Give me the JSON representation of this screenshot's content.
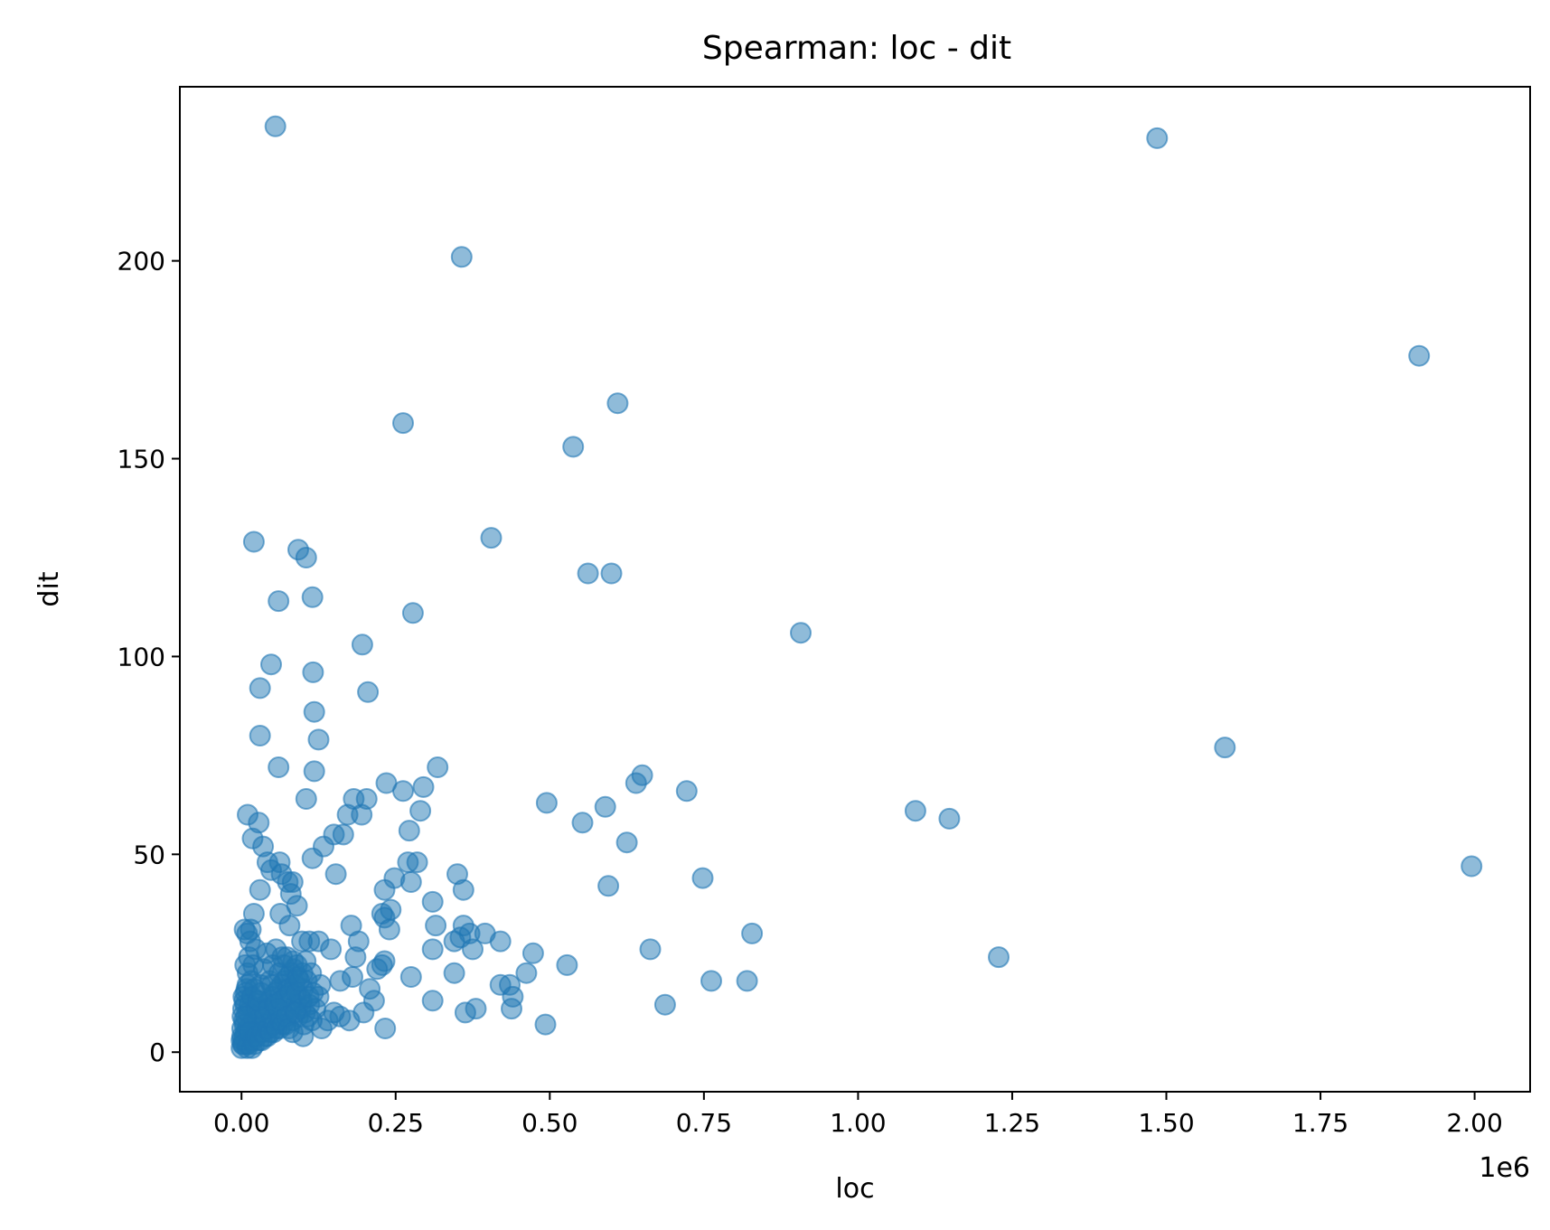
{
  "chart_data": {
    "type": "scatter",
    "title": "Spearman: loc - dit",
    "xlabel": "loc",
    "ylabel": "dit",
    "x_offset_label": "1e6",
    "xlim": [
      -100000,
      2090000
    ],
    "ylim": [
      -10,
      244
    ],
    "x_ticks": [
      0,
      250000,
      500000,
      750000,
      1000000,
      1250000,
      1500000,
      1750000,
      2000000
    ],
    "x_tick_labels": [
      "0.00",
      "0.25",
      "0.50",
      "0.75",
      "1.00",
      "1.25",
      "1.50",
      "1.75",
      "2.00"
    ],
    "y_ticks": [
      0,
      50,
      100,
      150,
      200
    ],
    "y_tick_labels": [
      "0",
      "50",
      "100",
      "150",
      "200"
    ],
    "grid": false,
    "legend": "none",
    "color": "#1f77b4",
    "point_alpha": 0.5,
    "points": [
      [
        55000,
        234
      ],
      [
        1485000,
        231
      ],
      [
        357000,
        201
      ],
      [
        1910000,
        176
      ],
      [
        610000,
        164
      ],
      [
        262000,
        159
      ],
      [
        538000,
        153
      ],
      [
        405000,
        130
      ],
      [
        20000,
        129
      ],
      [
        92000,
        127
      ],
      [
        105000,
        125
      ],
      [
        562000,
        121
      ],
      [
        600000,
        121
      ],
      [
        60000,
        114
      ],
      [
        115000,
        115
      ],
      [
        278000,
        111
      ],
      [
        907000,
        106
      ],
      [
        196000,
        103
      ],
      [
        48000,
        98
      ],
      [
        116000,
        96
      ],
      [
        30000,
        92
      ],
      [
        205000,
        91
      ],
      [
        118000,
        86
      ],
      [
        30000,
        80
      ],
      [
        125000,
        79
      ],
      [
        1595000,
        77
      ],
      [
        60000,
        72
      ],
      [
        318000,
        72
      ],
      [
        118000,
        71
      ],
      [
        650000,
        70
      ],
      [
        640000,
        68
      ],
      [
        235000,
        68
      ],
      [
        295000,
        67
      ],
      [
        262000,
        66
      ],
      [
        722000,
        66
      ],
      [
        105000,
        64
      ],
      [
        182000,
        64
      ],
      [
        203000,
        64
      ],
      [
        495000,
        63
      ],
      [
        590000,
        62
      ],
      [
        290000,
        61
      ],
      [
        1093000,
        61
      ],
      [
        10000,
        60
      ],
      [
        172000,
        60
      ],
      [
        195000,
        60
      ],
      [
        1148000,
        59
      ],
      [
        28000,
        58
      ],
      [
        553000,
        58
      ],
      [
        272000,
        56
      ],
      [
        150000,
        55
      ],
      [
        165000,
        55
      ],
      [
        18000,
        54
      ],
      [
        625000,
        53
      ],
      [
        35000,
        52
      ],
      [
        133000,
        52
      ],
      [
        115000,
        49
      ],
      [
        42000,
        48
      ],
      [
        62000,
        48
      ],
      [
        270000,
        48
      ],
      [
        285000,
        48
      ],
      [
        1995000,
        47
      ],
      [
        48000,
        46
      ],
      [
        65000,
        45
      ],
      [
        153000,
        45
      ],
      [
        350000,
        45
      ],
      [
        248000,
        44
      ],
      [
        748000,
        44
      ],
      [
        75000,
        43
      ],
      [
        83000,
        43
      ],
      [
        275000,
        43
      ],
      [
        595000,
        42
      ],
      [
        30000,
        41
      ],
      [
        232000,
        41
      ],
      [
        360000,
        41
      ],
      [
        80000,
        40
      ],
      [
        310000,
        38
      ],
      [
        90000,
        37
      ],
      [
        242000,
        36
      ],
      [
        20000,
        35
      ],
      [
        63000,
        35
      ],
      [
        228000,
        35
      ],
      [
        232000,
        34
      ],
      [
        78000,
        32
      ],
      [
        178000,
        32
      ],
      [
        315000,
        32
      ],
      [
        360000,
        32
      ],
      [
        5000,
        31
      ],
      [
        15000,
        31
      ],
      [
        240000,
        31
      ],
      [
        370000,
        30
      ],
      [
        395000,
        30
      ],
      [
        828000,
        30
      ],
      [
        355000,
        29
      ],
      [
        190000,
        28
      ],
      [
        345000,
        28
      ],
      [
        420000,
        28
      ],
      [
        98000,
        28
      ],
      [
        110000,
        28
      ],
      [
        125000,
        28
      ],
      [
        310000,
        26
      ],
      [
        375000,
        26
      ],
      [
        663000,
        26
      ],
      [
        145000,
        26
      ],
      [
        473000,
        25
      ],
      [
        1228000,
        24
      ],
      [
        185000,
        24
      ],
      [
        232000,
        23
      ],
      [
        228000,
        22
      ],
      [
        528000,
        22
      ],
      [
        220000,
        21
      ],
      [
        345000,
        20
      ],
      [
        462000,
        20
      ],
      [
        180000,
        19
      ],
      [
        275000,
        19
      ],
      [
        160000,
        18
      ],
      [
        762000,
        18
      ],
      [
        820000,
        18
      ],
      [
        420000,
        17
      ],
      [
        435000,
        17
      ],
      [
        208000,
        16
      ],
      [
        440000,
        14
      ],
      [
        215000,
        13
      ],
      [
        310000,
        13
      ],
      [
        687000,
        12
      ],
      [
        438000,
        11
      ],
      [
        380000,
        11
      ],
      [
        363000,
        10
      ],
      [
        198000,
        10
      ],
      [
        175000,
        8
      ],
      [
        160000,
        9
      ],
      [
        493000,
        7
      ],
      [
        233000,
        6
      ],
      [
        130000,
        6
      ],
      [
        100000,
        4
      ],
      [
        140000,
        8
      ],
      [
        125000,
        14
      ],
      [
        150000,
        10
      ],
      [
        0,
        1
      ],
      [
        2000,
        2
      ],
      [
        3000,
        3
      ],
      [
        5000,
        4
      ],
      [
        7000,
        5
      ],
      [
        8000,
        2
      ],
      [
        10000,
        6
      ],
      [
        12000,
        3
      ],
      [
        15000,
        7
      ],
      [
        18000,
        4
      ],
      [
        20000,
        8
      ],
      [
        22000,
        5
      ],
      [
        25000,
        9
      ],
      [
        28000,
        6
      ],
      [
        30000,
        10
      ],
      [
        33000,
        3
      ],
      [
        35000,
        11
      ],
      [
        38000,
        7
      ],
      [
        40000,
        12
      ],
      [
        42000,
        4
      ],
      [
        45000,
        13
      ],
      [
        48000,
        8
      ],
      [
        50000,
        14
      ],
      [
        52000,
        5
      ],
      [
        55000,
        15
      ],
      [
        58000,
        9
      ],
      [
        60000,
        16
      ],
      [
        62000,
        6
      ],
      [
        65000,
        17
      ],
      [
        68000,
        10
      ],
      [
        70000,
        18
      ],
      [
        72000,
        7
      ],
      [
        75000,
        19
      ],
      [
        78000,
        11
      ],
      [
        80000,
        20
      ],
      [
        82000,
        8
      ],
      [
        85000,
        21
      ],
      [
        88000,
        12
      ],
      [
        90000,
        22
      ],
      [
        92000,
        9
      ],
      [
        95000,
        14
      ],
      [
        98000,
        13
      ],
      [
        100000,
        16
      ],
      [
        103000,
        10
      ],
      [
        106000,
        18
      ],
      [
        110000,
        12
      ],
      [
        113000,
        20
      ],
      [
        116000,
        15
      ],
      [
        4000,
        8
      ],
      [
        6000,
        12
      ],
      [
        8000,
        16
      ],
      [
        10000,
        20
      ],
      [
        12000,
        24
      ],
      [
        14000,
        28
      ],
      [
        9000,
        30
      ],
      [
        6000,
        22
      ],
      [
        3000,
        14
      ],
      [
        16000,
        18
      ],
      [
        19000,
        22
      ],
      [
        23000,
        26
      ],
      [
        26000,
        13
      ],
      [
        31000,
        17
      ],
      [
        36000,
        21
      ],
      [
        41000,
        25
      ],
      [
        46000,
        18
      ],
      [
        51000,
        22
      ],
      [
        56000,
        26
      ],
      [
        61000,
        20
      ],
      [
        66000,
        24
      ],
      [
        71000,
        14
      ],
      [
        76000,
        16
      ],
      [
        81000,
        13
      ],
      [
        86000,
        17
      ],
      [
        91000,
        19
      ],
      [
        96000,
        11
      ],
      [
        101000,
        7
      ],
      [
        108000,
        9
      ],
      [
        120000,
        11
      ],
      [
        1000,
        6
      ],
      [
        1500,
        9
      ],
      [
        2500,
        11
      ],
      [
        4500,
        13
      ],
      [
        6500,
        15
      ],
      [
        9500,
        17
      ],
      [
        11000,
        10
      ],
      [
        13000,
        12
      ],
      [
        17000,
        14
      ],
      [
        21000,
        16
      ],
      [
        24000,
        11
      ],
      [
        27000,
        13
      ],
      [
        32000,
        15
      ],
      [
        37000,
        9
      ],
      [
        44000,
        11
      ],
      [
        49000,
        17
      ],
      [
        54000,
        12
      ],
      [
        59000,
        11
      ],
      [
        64000,
        13
      ],
      [
        69000,
        22
      ],
      [
        74000,
        24
      ],
      [
        79000,
        15
      ],
      [
        84000,
        23
      ],
      [
        89000,
        15
      ],
      [
        94000,
        18
      ],
      [
        99000,
        20
      ],
      [
        104000,
        23
      ],
      [
        109000,
        14
      ],
      [
        114000,
        8
      ],
      [
        128000,
        17
      ],
      [
        0,
        3
      ],
      [
        1000,
        4
      ],
      [
        3000,
        2
      ],
      [
        5000,
        7
      ],
      [
        7000,
        9
      ],
      [
        9000,
        1
      ],
      [
        11000,
        2
      ],
      [
        13000,
        5
      ],
      [
        17000,
        1
      ],
      [
        19000,
        3
      ],
      [
        21000,
        2
      ],
      [
        24000,
        4
      ],
      [
        29000,
        3
      ],
      [
        34000,
        5
      ],
      [
        39000,
        4
      ],
      [
        43000,
        6
      ],
      [
        47000,
        5
      ],
      [
        53000,
        7
      ],
      [
        57000,
        6
      ],
      [
        63000,
        8
      ],
      [
        67000,
        7
      ],
      [
        73000,
        9
      ],
      [
        77000,
        6
      ],
      [
        83000,
        5
      ],
      [
        87000,
        10
      ]
    ]
  }
}
